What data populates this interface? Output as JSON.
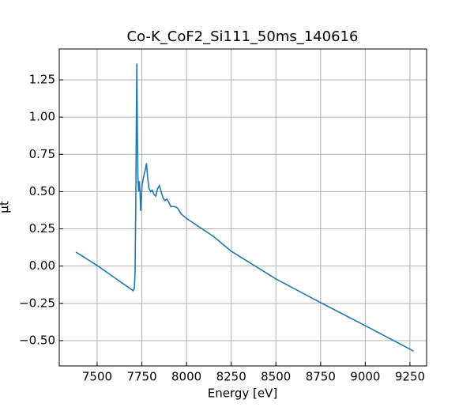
{
  "chart_data": {
    "type": "line",
    "title": "Co-K_CoF2_Si111_50ms_140616",
    "xlabel": "Energy [eV]",
    "ylabel": "μt",
    "x": [
      7381,
      7400,
      7500,
      7600,
      7690,
      7700,
      7708,
      7712,
      7716,
      7720,
      7722,
      7725,
      7728,
      7732,
      7736,
      7740,
      7743,
      7752,
      7760,
      7770,
      7776,
      7782,
      7790,
      7800,
      7808,
      7818,
      7828,
      7838,
      7848,
      7858,
      7868,
      7878,
      7890,
      7900,
      7912,
      7930,
      7950,
      7970,
      8000,
      8050,
      8100,
      8150,
      8250,
      8500,
      8750,
      9000,
      9270
    ],
    "series": [
      {
        "name": "Co-K_CoF2_Si111_50ms_140616",
        "color": "#1f77b4",
        "values": [
          0.094,
          0.08,
          0.004,
          -0.08,
          -0.155,
          -0.165,
          -0.15,
          -0.05,
          0.4,
          1.1,
          1.36,
          0.9,
          0.6,
          0.5,
          0.57,
          0.5,
          0.37,
          0.55,
          0.6,
          0.65,
          0.69,
          0.6,
          0.52,
          0.5,
          0.51,
          0.48,
          0.47,
          0.52,
          0.54,
          0.5,
          0.46,
          0.44,
          0.45,
          0.43,
          0.4,
          0.4,
          0.39,
          0.35,
          0.32,
          0.28,
          0.24,
          0.2,
          0.1,
          -0.086,
          -0.245,
          -0.4,
          -0.57
        ]
      }
    ],
    "xlim": [
      7288,
      9343
    ],
    "ylim": [
      -0.67,
      1.457
    ],
    "xticks": [
      7500,
      7750,
      8000,
      8250,
      8500,
      8750,
      9000,
      9250
    ],
    "yticks": [
      {
        "value": -0.5,
        "label": "−0.50"
      },
      {
        "value": -0.25,
        "label": "−0.25"
      },
      {
        "value": 0,
        "label": "0.00"
      },
      {
        "value": 0.25,
        "label": "0.25"
      },
      {
        "value": 0.5,
        "label": "0.50"
      },
      {
        "value": 0.75,
        "label": "0.75"
      },
      {
        "value": 1,
        "label": "1.00"
      },
      {
        "value": 1.25,
        "label": "1.25"
      }
    ],
    "grid": true
  }
}
